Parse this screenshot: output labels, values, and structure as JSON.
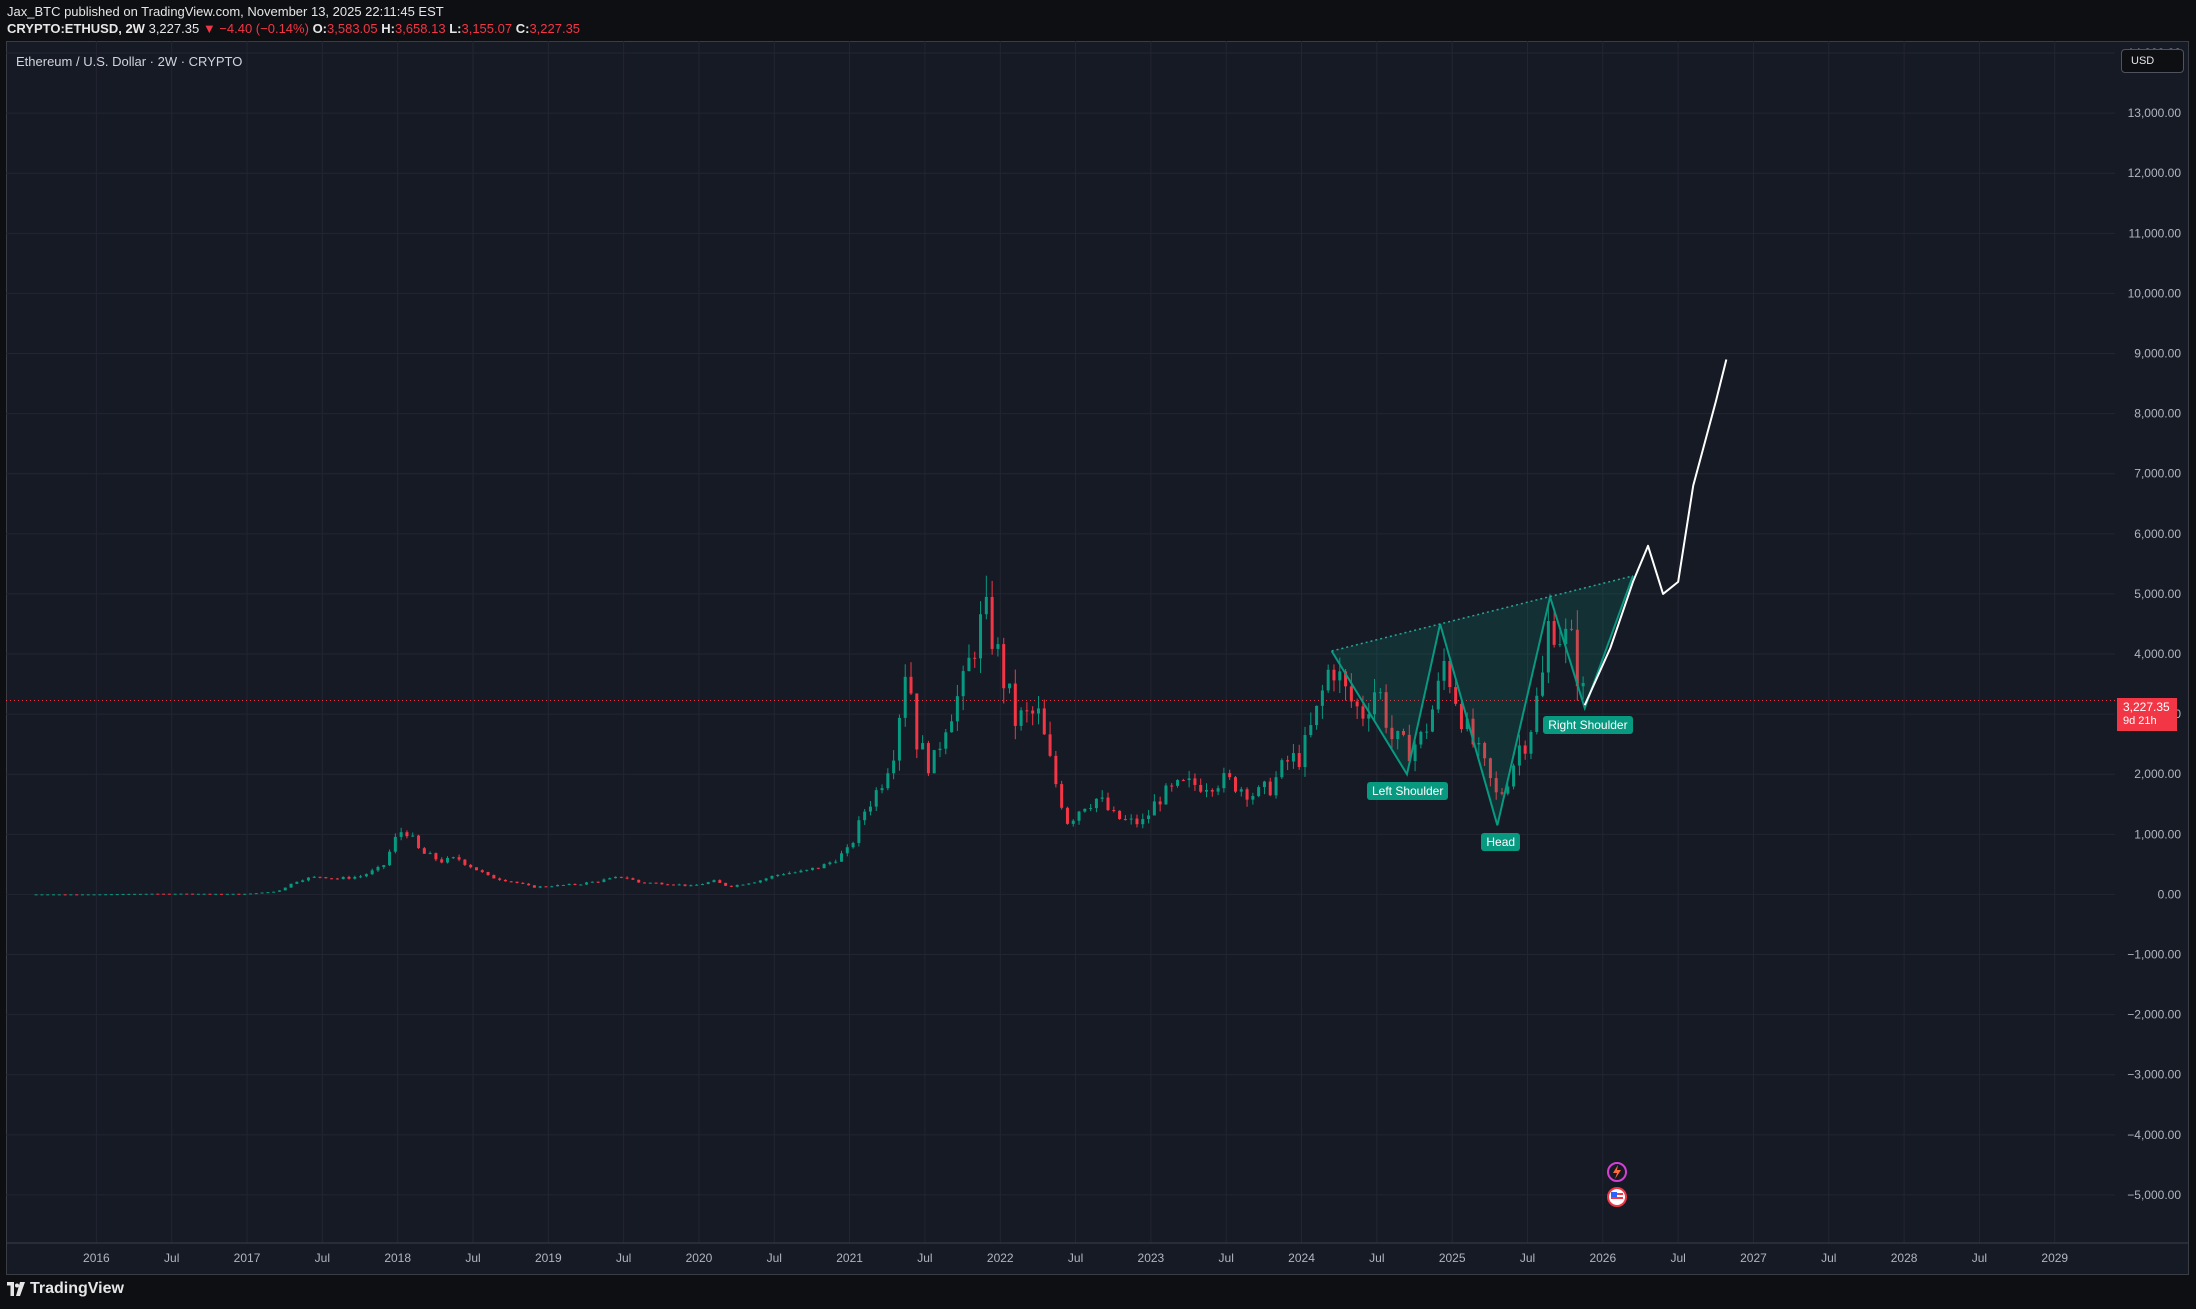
{
  "header": {
    "publisher_line": "Jax_BTC published on TradingView.com, November 13, 2025 22:11:45 EST",
    "symbol": "CRYPTO:ETHUSD, 2W",
    "last": "3,227.35",
    "change": "▼ −4.40 (−0.14%)",
    "open_label": "O:",
    "open": "3,583.05",
    "high_label": "H:",
    "high": "3,658.13",
    "low_label": "L:",
    "low": "3,155.07",
    "close_label": "C:",
    "close": "3,227.35"
  },
  "symbol_title": "Ethereum / U.S. Dollar · 2W · CRYPTO",
  "currency": "USD",
  "price_tag": {
    "price": "3,227.35",
    "countdown": "9d 21h"
  },
  "footer": {
    "brand": "TradingView"
  },
  "colors": {
    "background": "#161a25",
    "up": "#089981",
    "down": "#f23645",
    "pattern_fill": "#089981",
    "projection": "#ffffff",
    "grid": "#232632"
  },
  "chart_data": {
    "type": "candlestick",
    "title": "Ethereum / U.S. Dollar · 2W · CRYPTO",
    "x_tick_labels": [
      "2016",
      "Jul",
      "2017",
      "Jul",
      "2018",
      "Jul",
      "2019",
      "Jul",
      "2020",
      "Jul",
      "2021",
      "Jul",
      "2022",
      "Jul",
      "2023",
      "Jul",
      "2024",
      "Jul",
      "2025",
      "Jul",
      "2026",
      "Jul",
      "2027",
      "Jul",
      "2028",
      "Jul",
      "2029"
    ],
    "y_ticks": [
      14000,
      13000,
      12000,
      11000,
      10000,
      9000,
      8000,
      7000,
      6000,
      5000,
      4000,
      3000,
      2000,
      1000,
      0,
      -1000,
      -2000,
      -3000,
      -4000,
      -5000
    ],
    "y_tick_labels": [
      "14,000.00",
      "13,000.00",
      "12,000.00",
      "11,000.00",
      "10,000.00",
      "9,000.00",
      "8,000.00",
      "7,000.00",
      "6,000.00",
      "5,000.00",
      "4,000.00",
      "3,000.00",
      "2,000.00",
      "1,000.00",
      "0.00",
      "−1,000.00",
      "−2,000.00",
      "−3,000.00",
      "−4,000.00",
      "−5,000.00"
    ],
    "ylim": [
      -5800,
      14200
    ],
    "x_range": [
      2015.4,
      2029.4
    ],
    "grid": true,
    "last_price": 3227.35,
    "series": [
      {
        "name": "ETHUSD",
        "points": [
          [
            2015.6,
            1
          ],
          [
            2015.8,
            1
          ],
          [
            2016.0,
            1
          ],
          [
            2016.2,
            8
          ],
          [
            2016.4,
            12
          ],
          [
            2016.6,
            12
          ],
          [
            2016.8,
            10
          ],
          [
            2017.0,
            10
          ],
          [
            2017.2,
            50
          ],
          [
            2017.35,
            250
          ],
          [
            2017.5,
            300
          ],
          [
            2017.6,
            260
          ],
          [
            2017.75,
            300
          ],
          [
            2017.9,
            450
          ],
          [
            2018.0,
            1000
          ],
          [
            2018.05,
            1100
          ],
          [
            2018.15,
            700
          ],
          [
            2018.3,
            550
          ],
          [
            2018.4,
            600
          ],
          [
            2018.5,
            450
          ],
          [
            2018.6,
            300
          ],
          [
            2018.75,
            220
          ],
          [
            2018.9,
            120
          ],
          [
            2019.0,
            140
          ],
          [
            2019.2,
            170
          ],
          [
            2019.4,
            250
          ],
          [
            2019.5,
            300
          ],
          [
            2019.6,
            200
          ],
          [
            2019.8,
            180
          ],
          [
            2019.95,
            140
          ],
          [
            2020.1,
            220
          ],
          [
            2020.2,
            130
          ],
          [
            2020.4,
            230
          ],
          [
            2020.55,
            350
          ],
          [
            2020.7,
            380
          ],
          [
            2020.85,
            500
          ],
          [
            2021.0,
            750
          ],
          [
            2021.1,
            1400
          ],
          [
            2021.2,
            1800
          ],
          [
            2021.3,
            2500
          ],
          [
            2021.38,
            4000
          ],
          [
            2021.45,
            2500
          ],
          [
            2021.55,
            2100
          ],
          [
            2021.65,
            3000
          ],
          [
            2021.75,
            3400
          ],
          [
            2021.85,
            4400
          ],
          [
            2021.92,
            4600
          ],
          [
            2022.0,
            3800
          ],
          [
            2022.1,
            2900
          ],
          [
            2022.25,
            3000
          ],
          [
            2022.35,
            2000
          ],
          [
            2022.45,
            1200
          ],
          [
            2022.55,
            1500
          ],
          [
            2022.65,
            1600
          ],
          [
            2022.75,
            1300
          ],
          [
            2022.85,
            1200
          ],
          [
            2022.95,
            1200
          ],
          [
            2023.05,
            1600
          ],
          [
            2023.2,
            1800
          ],
          [
            2023.35,
            1850
          ],
          [
            2023.45,
            1900
          ],
          [
            2023.55,
            1850
          ],
          [
            2023.7,
            1650
          ],
          [
            2023.8,
            1800
          ],
          [
            2023.9,
            2200
          ],
          [
            2024.0,
            2300
          ],
          [
            2024.1,
            3000
          ],
          [
            2024.2,
            3900
          ],
          [
            2024.3,
            3300
          ],
          [
            2024.4,
            3000
          ],
          [
            2024.5,
            3500
          ],
          [
            2024.6,
            2600
          ],
          [
            2024.7,
            2400
          ],
          [
            2024.8,
            2600
          ],
          [
            2024.9,
            3300
          ],
          [
            2024.95,
            3900
          ],
          [
            2025.0,
            3500
          ],
          [
            2025.1,
            2700
          ],
          [
            2025.2,
            2200
          ],
          [
            2025.3,
            1600
          ],
          [
            2025.35,
            1800
          ],
          [
            2025.45,
            2500
          ],
          [
            2025.5,
            2600
          ],
          [
            2025.6,
            3600
          ],
          [
            2025.65,
            4700
          ],
          [
            2025.7,
            4400
          ],
          [
            2025.8,
            4100
          ],
          [
            2025.85,
            3500
          ],
          [
            2025.88,
            3227
          ]
        ]
      }
    ],
    "annotations": [
      {
        "text": "Left Shoulder",
        "x": 2024.7,
        "y": 2000
      },
      {
        "text": "Head",
        "x": 2025.3,
        "y": 1150
      },
      {
        "text": "Right Shoulder",
        "x": 2025.87,
        "y": 3100
      }
    ],
    "neckline": [
      [
        2024.2,
        4050
      ],
      [
        2026.2,
        5300
      ]
    ],
    "pattern_path": [
      [
        2024.2,
        4050
      ],
      [
        2024.7,
        2000
      ],
      [
        2024.92,
        4500
      ],
      [
        2025.3,
        1150
      ],
      [
        2025.65,
        4950
      ],
      [
        2025.88,
        3100
      ],
      [
        2026.2,
        5300
      ]
    ],
    "projection_path": [
      [
        2025.88,
        3150
      ],
      [
        2026.05,
        4100
      ],
      [
        2026.2,
        5200
      ],
      [
        2026.3,
        5800
      ],
      [
        2026.4,
        5000
      ],
      [
        2026.5,
        5200
      ],
      [
        2026.6,
        6800
      ],
      [
        2026.75,
        8200
      ],
      [
        2026.82,
        8900
      ]
    ]
  }
}
